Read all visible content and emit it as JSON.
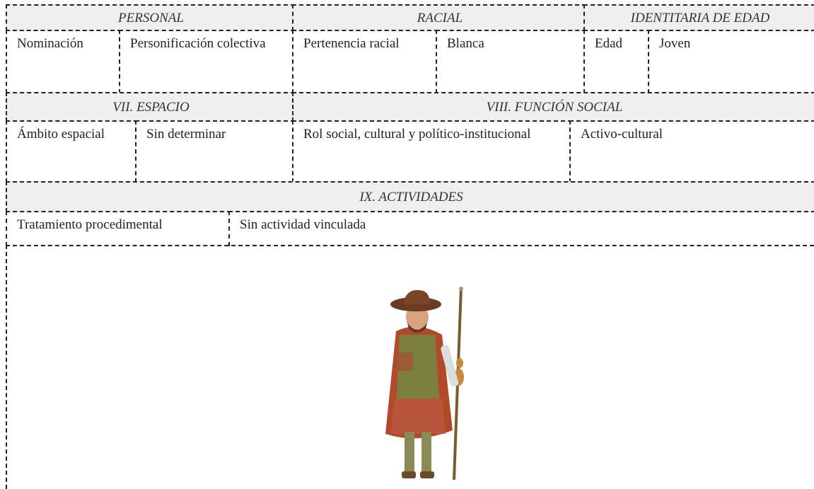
{
  "table": {
    "rows": [
      {
        "cells": [
          "PERSONAL",
          "RACIAL",
          "IDENTITARIA DE EDAD"
        ]
      },
      {
        "cells": [
          "Nominación",
          "Personificación colectiva",
          "Pertenencia racial",
          "Blanca",
          "Edad",
          "Joven"
        ]
      },
      {
        "cells": [
          "VII. ESPACIO",
          "VIII. FUNCIÓN SOCIAL"
        ]
      },
      {
        "cells": [
          "Ámbito espacial",
          "Sin determinar",
          "Rol social, cultural y político-institucional",
          "Activo-cultural"
        ]
      },
      {
        "cells": [
          "IX. ACTIVIDADES"
        ]
      },
      {
        "cells": [
          "Tratamiento procedimental",
          "Sin actividad vinculada"
        ]
      }
    ]
  }
}
